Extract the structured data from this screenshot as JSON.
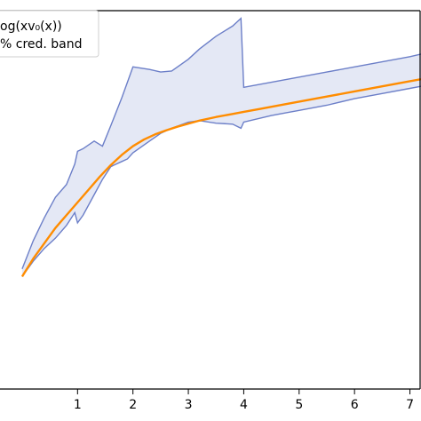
{
  "chart_data": {
    "type": "line",
    "xlim": [
      -0.4,
      7.2
    ],
    "ylim": [
      -1.8,
      5.6
    ],
    "x_ticks": [
      "1",
      "2",
      "3",
      "4",
      "5",
      "6",
      "7"
    ],
    "grid": false,
    "legend": {
      "placement": "top-left",
      "entries": [
        {
          "label": "og(xv₀(x))",
          "color": "#ff8c00",
          "kind": "line"
        },
        {
          "label": "% cred. band",
          "color": "#6c7fc8",
          "fill": "#e4e8f5",
          "kind": "patch"
        }
      ]
    },
    "series": [
      {
        "type": "line",
        "color": "#ff8c00",
        "x": [
          0.0,
          0.2,
          0.4,
          0.6,
          0.8,
          1.0,
          1.2,
          1.4,
          1.6,
          1.8,
          2.0,
          2.2,
          2.4,
          2.6,
          2.8,
          3.0,
          3.2,
          3.5,
          3.8,
          4.0,
          4.3,
          4.6,
          5.0,
          5.5,
          6.0,
          6.5,
          7.0,
          7.2
        ],
        "y": [
          0.4,
          0.75,
          1.05,
          1.35,
          1.6,
          1.85,
          2.1,
          2.35,
          2.58,
          2.78,
          2.95,
          3.08,
          3.18,
          3.26,
          3.33,
          3.39,
          3.45,
          3.52,
          3.58,
          3.62,
          3.68,
          3.74,
          3.82,
          3.92,
          4.02,
          4.12,
          4.22,
          4.26
        ]
      },
      {
        "type": "band",
        "stroke": "#6c7fc8",
        "fill": "#e4e8f5",
        "x": [
          0.0,
          0.2,
          0.4,
          0.6,
          0.8,
          0.95,
          1.0,
          1.1,
          1.3,
          1.45,
          1.6,
          1.8,
          1.9,
          2.0,
          2.3,
          2.5,
          2.7,
          3.0,
          3.2,
          3.5,
          3.8,
          3.95,
          4.0,
          4.5,
          5.0,
          5.5,
          6.0,
          6.5,
          7.0,
          7.2
        ],
        "upper": [
          0.55,
          1.1,
          1.55,
          1.95,
          2.2,
          2.6,
          2.85,
          2.9,
          3.05,
          2.95,
          3.35,
          3.9,
          4.2,
          4.5,
          4.45,
          4.4,
          4.42,
          4.65,
          4.85,
          5.1,
          5.3,
          5.45,
          4.1,
          4.2,
          4.3,
          4.4,
          4.5,
          4.6,
          4.7,
          4.75
        ],
        "lower": [
          0.4,
          0.7,
          0.95,
          1.15,
          1.4,
          1.65,
          1.45,
          1.6,
          2.0,
          2.3,
          2.55,
          2.65,
          2.7,
          2.82,
          3.05,
          3.2,
          3.3,
          3.42,
          3.45,
          3.4,
          3.38,
          3.3,
          3.42,
          3.55,
          3.65,
          3.75,
          3.88,
          3.98,
          4.08,
          4.12
        ]
      }
    ]
  }
}
